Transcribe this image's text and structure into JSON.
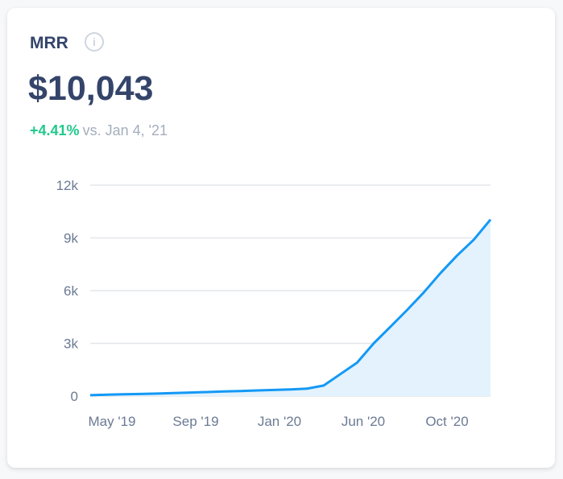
{
  "card": {
    "title": "MRR",
    "info_icon": "info-circle-icon",
    "value": "$10,043",
    "change_pct": "+4.41%",
    "comparison": "vs. Jan 4, '21"
  },
  "colors": {
    "line": "#1399f5",
    "fill": "#e3f2fd",
    "positive": "#22c98c",
    "text": "#34446a"
  },
  "chart_data": {
    "type": "area",
    "title": "",
    "xlabel": "",
    "ylabel": "",
    "ylim": [
      0,
      12000
    ],
    "yticks": [
      0,
      3000,
      6000,
      9000,
      12000
    ],
    "ytick_labels": [
      "0",
      "3k",
      "6k",
      "9k",
      "12k"
    ],
    "xtick_labels": [
      "May '19",
      "Sep '19",
      "Jan '20",
      "Jun '20",
      "Oct '20"
    ],
    "grid": true,
    "values": [
      50,
      80,
      100,
      120,
      140,
      170,
      200,
      230,
      260,
      290,
      320,
      350,
      380,
      420,
      600,
      1250,
      1900,
      3000,
      3950,
      4900,
      5900,
      7000,
      8000,
      8900,
      10043
    ]
  }
}
